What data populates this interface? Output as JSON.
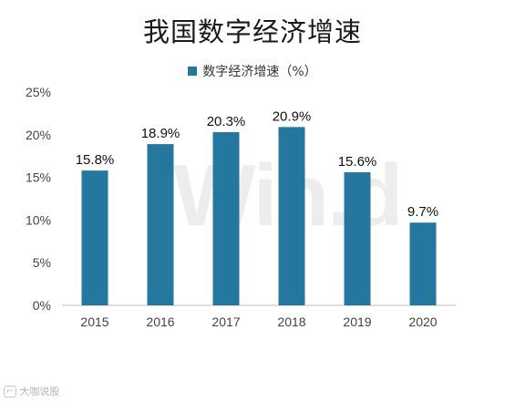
{
  "header": {
    "title": "我国数字经济增速"
  },
  "footer": {
    "watermark_text": "大咖说股",
    "watermark_logo_text": "Win.d"
  },
  "chart_data": {
    "type": "bar",
    "title": "我国数字经济增速",
    "categories": [
      "2015",
      "2016",
      "2017",
      "2018",
      "2019",
      "2020"
    ],
    "series": [
      {
        "name": "数字经济增速（%）",
        "values": [
          15.8,
          18.9,
          20.3,
          20.9,
          15.6,
          9.7
        ],
        "data_labels": [
          "15.8%",
          "18.9%",
          "20.3%",
          "20.9%",
          "15.6%",
          "9.7%"
        ]
      }
    ],
    "y_ticks": [
      "0%",
      "5%",
      "10%",
      "15%",
      "20%",
      "25%"
    ],
    "ylim": [
      0,
      25
    ],
    "grid": false,
    "legend_position": "top-center",
    "colors": {
      "bar": "#2478a0",
      "axis": "#bfbfbf"
    }
  }
}
